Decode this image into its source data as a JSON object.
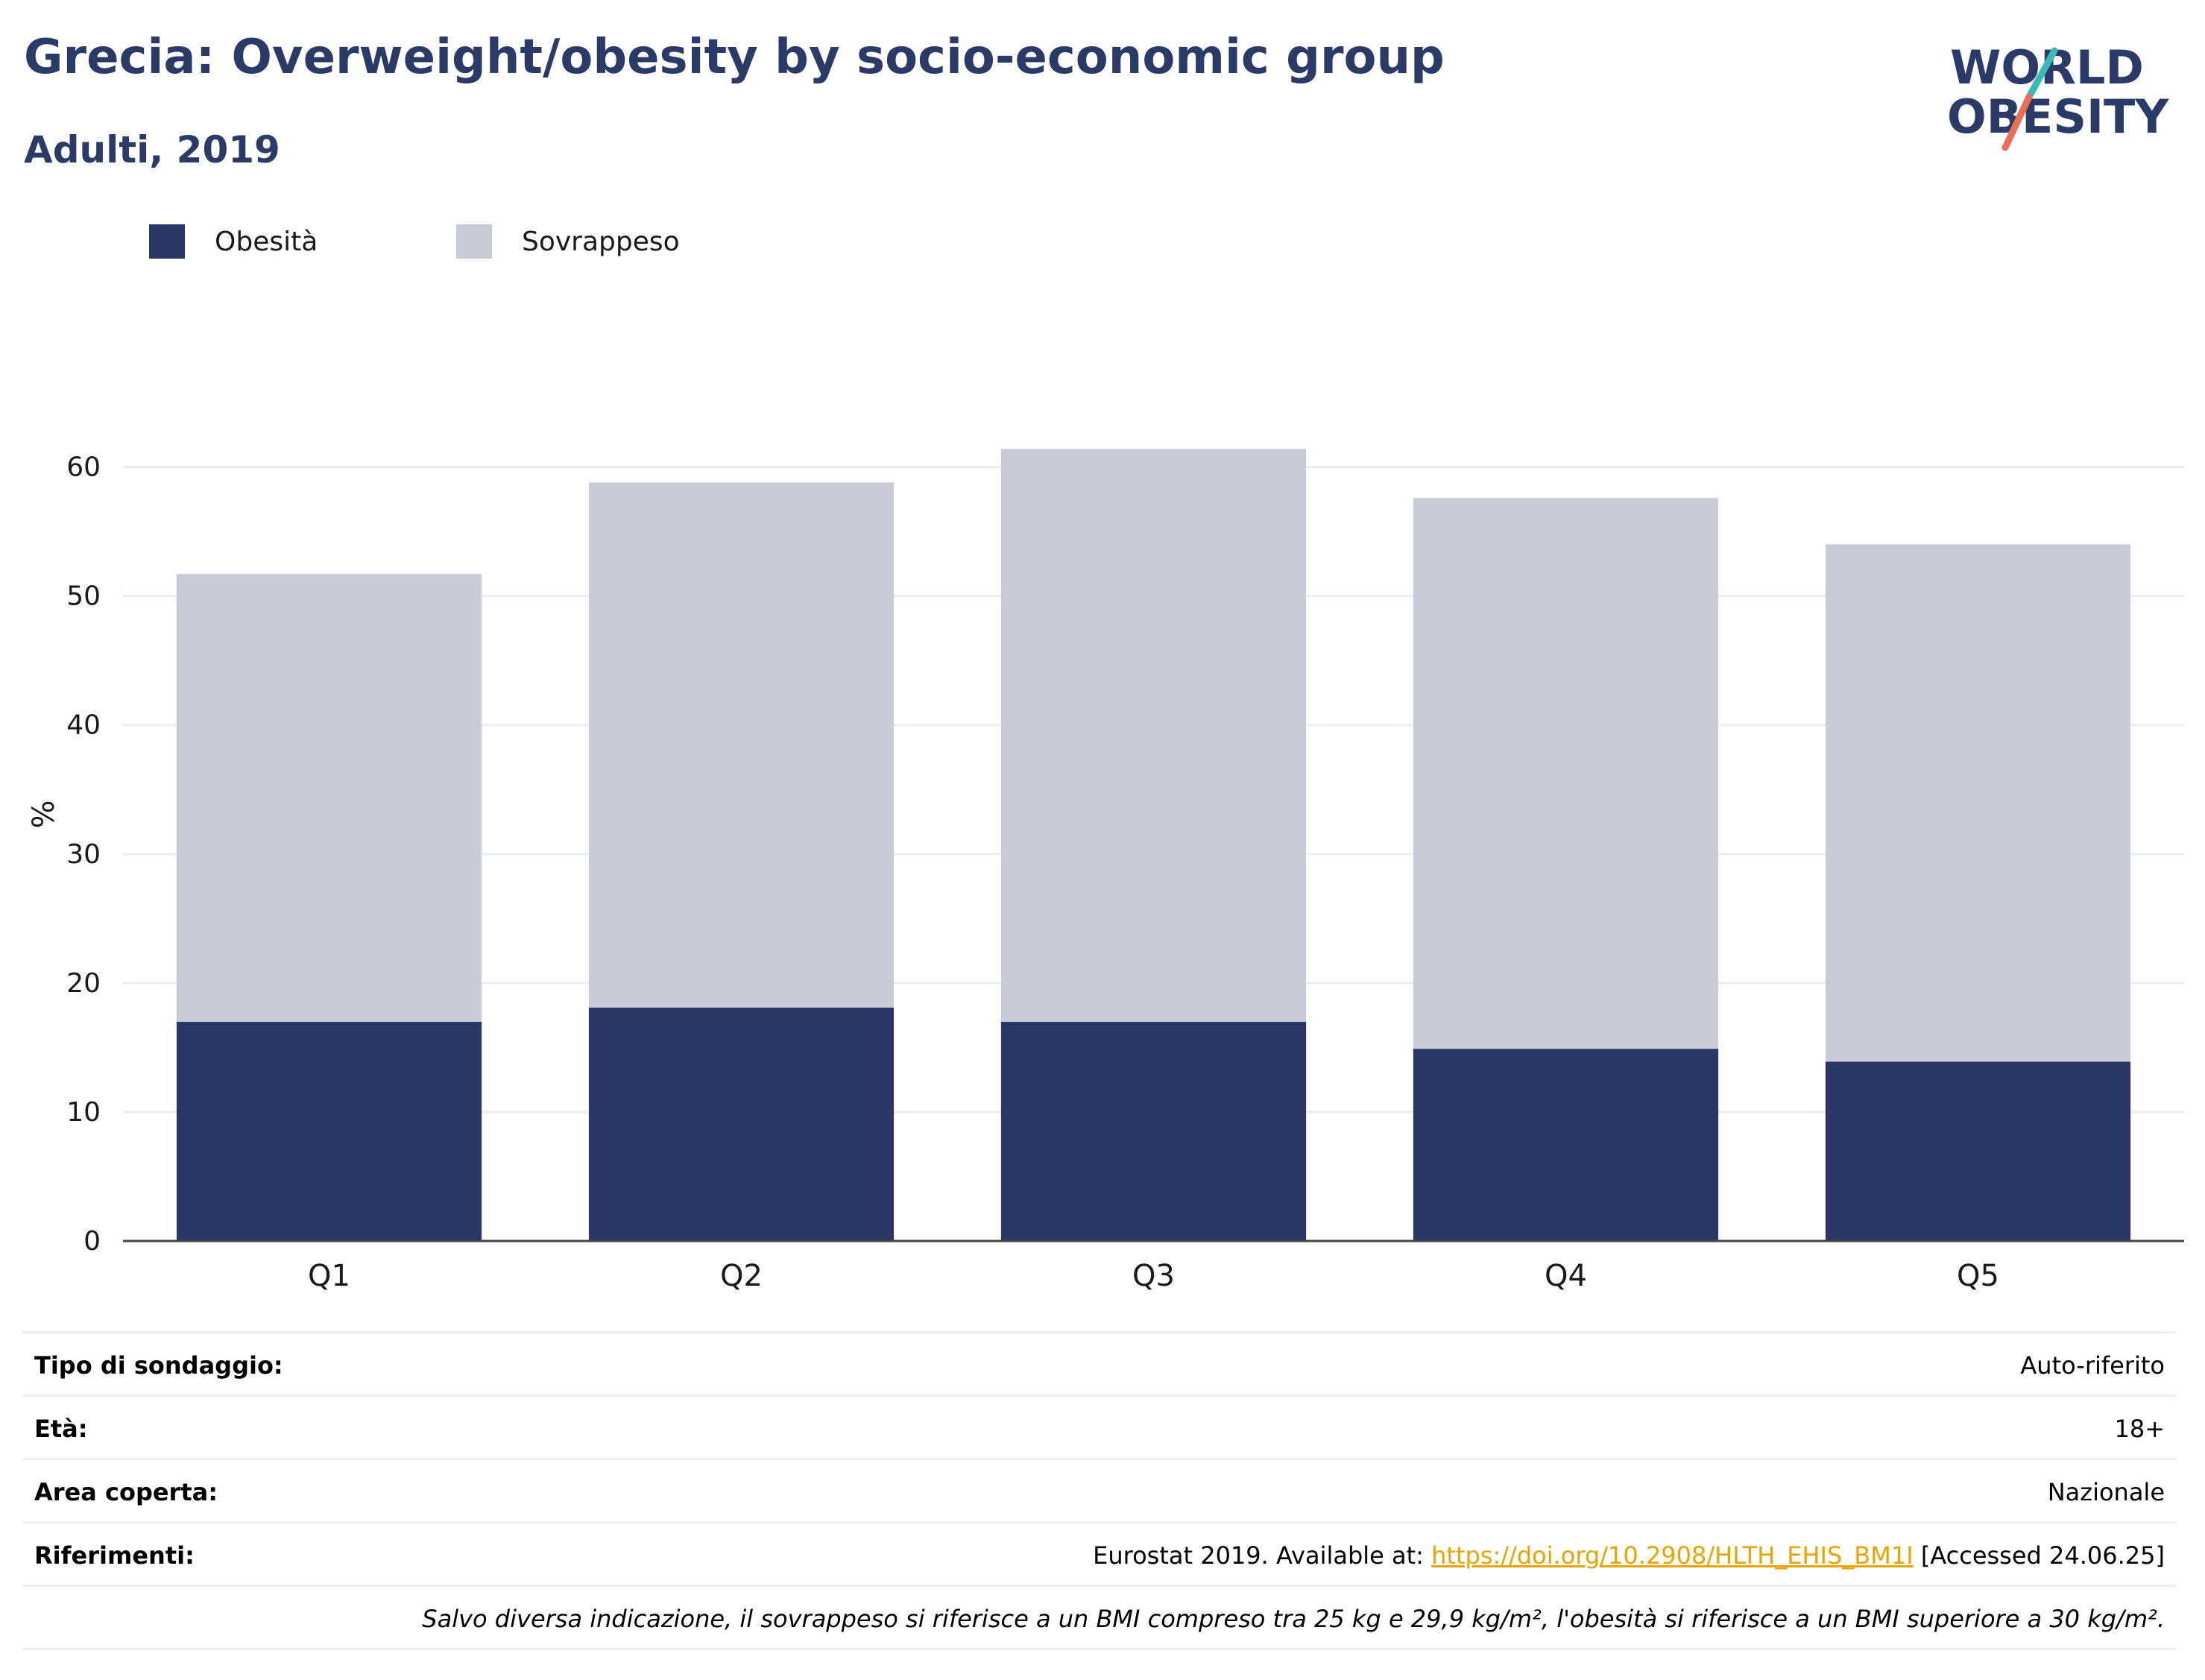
{
  "header": {
    "title": "Grecia: Overweight/obesity by socio-economic group",
    "subtitle": "Adulti, 2019"
  },
  "logo": {
    "line1": "WORLD",
    "line2": "OBESITY",
    "colors": {
      "text": "#2b3a67",
      "slash_top": "#3bb9b7",
      "slash_bottom": "#e8705a"
    }
  },
  "legend": [
    {
      "label": "Obesità",
      "color": "#2b3765"
    },
    {
      "label": "Sovrappeso",
      "color": "#c9ccd8"
    }
  ],
  "chart_data": {
    "type": "bar",
    "stacked": true,
    "categories": [
      "Q1",
      "Q2",
      "Q3",
      "Q4",
      "Q5"
    ],
    "series": [
      {
        "name": "Obesità",
        "values": [
          17.0,
          18.1,
          17.0,
          14.9,
          13.9
        ],
        "color": "#2b3765"
      },
      {
        "name": "Sovrappeso",
        "values": [
          34.7,
          40.7,
          44.4,
          42.7,
          40.1
        ],
        "color": "#c9ccd8"
      }
    ],
    "title": "Grecia: Overweight/obesity by socio-economic group",
    "subtitle": "Adulti, 2019",
    "xlabel": "",
    "ylabel": "%",
    "ylim": [
      0,
      65
    ],
    "yticks": [
      0,
      10,
      20,
      30,
      40,
      50,
      60
    ],
    "grid": true,
    "legend_position": "top-left"
  },
  "info": {
    "survey_key": "Tipo di sondaggio:",
    "survey_val": "Auto-riferito",
    "age_key": "Età:",
    "age_val": "18+",
    "area_key": "Area coperta:",
    "area_val": "Nazionale",
    "ref_key": "Riferimenti:",
    "ref_prefix": "Eurostat 2019. Available at: ",
    "ref_link": "https://doi.org/10.2908/HLTH_EHIS_BM1I",
    "ref_suffix": " [Accessed 24.06.25]",
    "note": "Salvo diversa indicazione, il sovrappeso si riferisce a un BMI compreso tra 25 kg e 29,9 kg/m², l'obesità si riferisce a un BMI superiore a 30 kg/m²."
  }
}
